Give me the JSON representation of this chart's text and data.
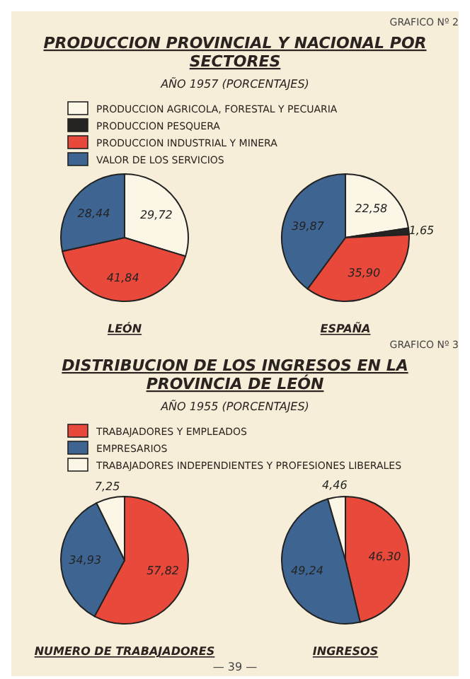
{
  "chart_data": [
    {
      "type": "pie",
      "title": "PRODUCCION PROVINCIAL Y NACIONAL POR SECTORES",
      "subtitle": "AÑO 1957 (PORCENTAJES)",
      "annotations": [
        "GRAFICO Nº 2"
      ],
      "xlabel": "LEÓN",
      "legend": "top",
      "categories": [
        "PRODUCCION AGRICOLA, FORESTAL Y PECUARIA",
        "PRODUCCION PESQUERA",
        "PRODUCCION INDUSTRIAL Y MINERA",
        "VALOR DE LOS SERVICIOS"
      ],
      "values": [
        29.72,
        null,
        41.84,
        28.44
      ],
      "value_labels": [
        "29,72",
        null,
        "41,84",
        "28,44"
      ],
      "colors": [
        "#fbf6e6",
        "#262422",
        "#e8493b",
        "#3e6591"
      ]
    },
    {
      "type": "pie",
      "xlabel": "ESPAÑA",
      "categories": [
        null,
        null,
        null,
        null
      ],
      "values": [
        22.58,
        1.65,
        35.9,
        39.87
      ],
      "value_labels": [
        "22,58",
        "1,65",
        "35,90",
        "39,87"
      ],
      "colors": [
        "#fbf6e6",
        "#262422",
        "#e8493b",
        "#3e6591"
      ]
    },
    {
      "type": "pie",
      "title": "DISTRIBUCION DE LOS INGRESOS EN LA PROVINCIA DE LEÓN",
      "subtitle": "AÑO 1955 (PORCENTAJES)",
      "annotations": [
        "GRAFICO Nº 3"
      ],
      "xlabel": "NUMERO DE TRABAJADORES",
      "legend": "top",
      "categories": [
        "TRABAJADORES Y EMPLEADOS",
        "EMPRESARIOS",
        "TRABAJADORES INDEPENDIENTES Y PROFESIONES LIBERALES"
      ],
      "values": [
        57.82,
        34.93,
        7.25
      ],
      "value_labels": [
        "57,82",
        "34,93",
        "7,25"
      ],
      "colors": [
        "#e8493b",
        "#3e6591",
        "#fbf6e6"
      ]
    },
    {
      "type": "pie",
      "xlabel": "INGRESOS",
      "annotations": [
        "— 39 —"
      ],
      "categories": [
        null,
        null,
        null
      ],
      "values": [
        46.3,
        49.24,
        4.46
      ],
      "value_labels": [
        "46,30",
        "49,24",
        "4,46"
      ],
      "colors": [
        "#e8493b",
        "#3e6591",
        "#fbf6e6"
      ]
    }
  ]
}
